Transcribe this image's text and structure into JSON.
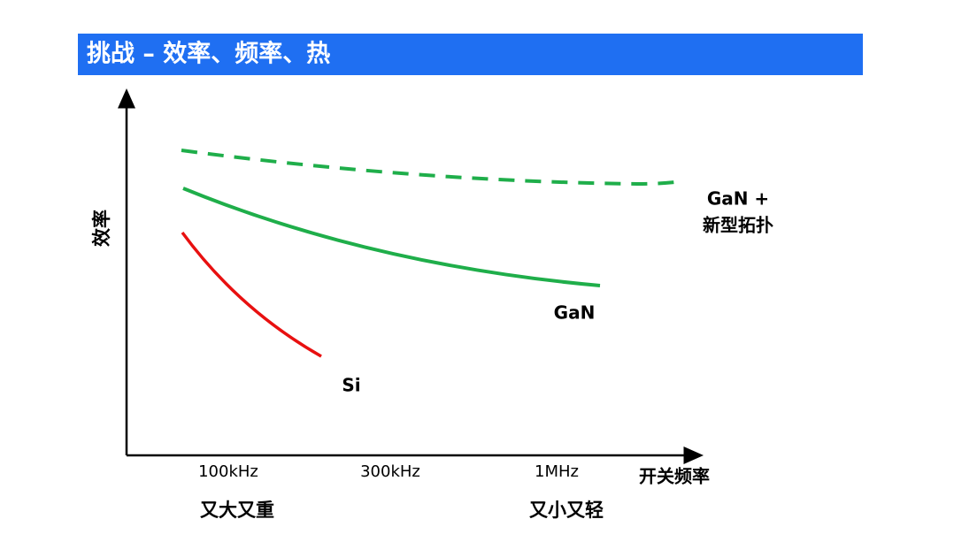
{
  "header": {
    "title": "挑战 – 效率、频率、热"
  },
  "axes": {
    "y_label": "效率",
    "x_label": "开关频率",
    "x_ticks": [
      "100kHz",
      "300kHz",
      "1MHz"
    ],
    "x_notes": [
      "又大又重",
      "又小又轻"
    ]
  },
  "curves": {
    "si": "Si",
    "gan": "GaN",
    "gan_topology": [
      "GaN +",
      "新型拓扑"
    ]
  }
}
